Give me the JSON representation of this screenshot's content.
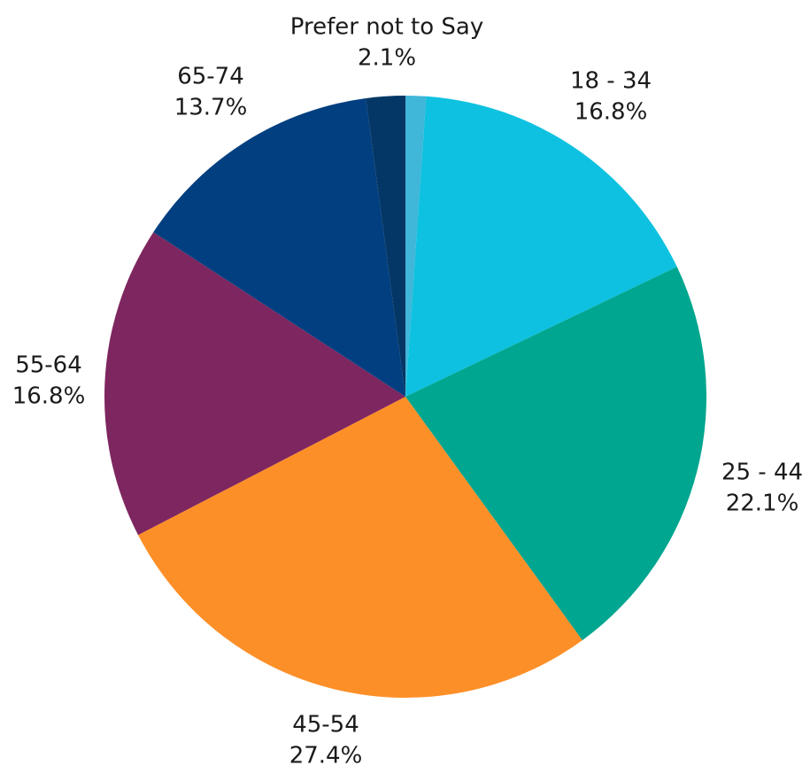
{
  "chart_data": {
    "type": "pie",
    "title": "",
    "start_angle_deg": 0,
    "direction": "clockwise",
    "slices": [
      {
        "label": "",
        "value": 1.1,
        "color": "#40b6d8",
        "labeled": false
      },
      {
        "label": "18 - 34",
        "value": 16.8,
        "display": "16.8%",
        "color": "#0ec1e0",
        "labeled": true
      },
      {
        "label": "25 - 44",
        "value": 22.1,
        "display": "22.1%",
        "color": "#00a68f",
        "labeled": true
      },
      {
        "label": "45-54",
        "value": 27.4,
        "display": "27.4%",
        "color": "#fd8f28",
        "labeled": true
      },
      {
        "label": "55-64",
        "value": 16.8,
        "display": "16.8%",
        "color": "#7e2660",
        "labeled": true
      },
      {
        "label": "65-74",
        "value": 13.7,
        "display": "13.7%",
        "color": "#023f80",
        "labeled": true
      },
      {
        "label": "Prefer not to Say",
        "value": 2.1,
        "display": "2.1%",
        "color": "#043765",
        "labeled": true
      }
    ]
  }
}
